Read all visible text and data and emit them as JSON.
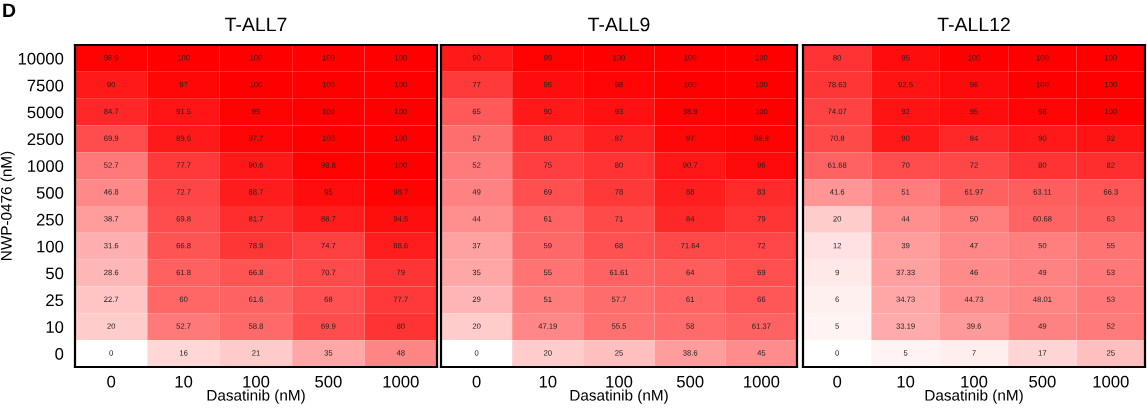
{
  "chart_data": [
    {
      "type": "heatmap",
      "title": "T-ALL7",
      "xlabel": "Dasatinib (nM)",
      "ylabel": "NWP-0476 (nM)",
      "annotations": [
        "D"
      ],
      "data_labels": true,
      "categories": [
        "0",
        "10",
        "100",
        "500",
        "1000"
      ],
      "y_categories": [
        "10000",
        "7500",
        "5000",
        "2500",
        "1000",
        "500",
        "250",
        "100",
        "50",
        "25",
        "10",
        "0"
      ],
      "cells": [
        [
          98.9,
          100,
          100,
          100,
          100
        ],
        [
          90,
          97,
          100,
          100,
          100
        ],
        [
          84.7,
          91.5,
          99,
          100,
          100
        ],
        [
          69.9,
          89.6,
          97.7,
          100,
          100
        ],
        [
          52.7,
          77.7,
          90.6,
          98.8,
          100
        ],
        [
          46.8,
          72.7,
          88.7,
          95,
          98.7
        ],
        [
          38.7,
          69.8,
          81.7,
          88.7,
          94.5
        ],
        [
          31.6,
          66.8,
          78.9,
          74.7,
          88.6
        ],
        [
          28.6,
          61.8,
          66.8,
          70.7,
          79
        ],
        [
          22.7,
          60,
          61.6,
          68,
          77.7
        ],
        [
          20,
          52.7,
          58.8,
          69.9,
          80
        ],
        [
          0,
          16,
          21,
          35,
          48
        ]
      ]
    },
    {
      "type": "heatmap",
      "title": "T-ALL9",
      "xlabel": "Dasatinib (nM)",
      "data_labels": true,
      "tick_labels": "x",
      "categories": [
        "0",
        "10",
        "100",
        "500",
        "1000"
      ],
      "y_categories": [
        "10000",
        "7500",
        "5000",
        "2500",
        "1000",
        "500",
        "250",
        "100",
        "50",
        "25",
        "10",
        "0"
      ],
      "cells": [
        [
          90,
          99,
          100,
          100,
          100
        ],
        [
          77,
          95,
          98,
          100,
          100
        ],
        [
          65,
          90,
          93,
          98.9,
          100
        ],
        [
          57,
          80,
          87,
          97,
          98.8
        ],
        [
          52,
          75,
          80,
          90.7,
          96
        ],
        [
          49,
          69,
          78,
          88,
          83
        ],
        [
          44,
          61,
          71,
          84,
          79
        ],
        [
          37,
          59,
          68,
          71.64,
          72
        ],
        [
          35,
          55,
          61.61,
          64,
          69
        ],
        [
          29,
          51,
          57.7,
          61,
          66
        ],
        [
          20,
          47.19,
          55.5,
          58,
          61.37
        ],
        [
          0,
          20,
          25,
          38.6,
          45
        ]
      ]
    },
    {
      "type": "heatmap",
      "title": "T-ALL12",
      "xlabel": "Dasatinib (nM)",
      "data_labels": true,
      "tick_labels": "x",
      "categories": [
        "0",
        "10",
        "100",
        "500",
        "1000"
      ],
      "y_categories": [
        "10000",
        "7500",
        "5000",
        "2500",
        "1000",
        "500",
        "250",
        "100",
        "50",
        "25",
        "10",
        "0"
      ],
      "cells": [
        [
          80,
          95,
          100,
          100,
          100
        ],
        [
          78.63,
          92.5,
          96,
          100,
          100
        ],
        [
          74.07,
          92,
          95,
          98,
          100
        ],
        [
          70.8,
          90,
          84,
          90,
          92
        ],
        [
          61.68,
          70,
          72,
          80,
          82
        ],
        [
          41.6,
          51,
          61.97,
          63.11,
          66.3
        ],
        [
          20,
          44,
          50,
          60.68,
          63
        ],
        [
          12,
          39,
          47,
          50,
          55
        ],
        [
          9,
          37.33,
          46,
          49,
          53
        ],
        [
          6,
          34.73,
          44.73,
          48.01,
          53
        ],
        [
          5,
          33.19,
          39.6,
          49,
          52
        ],
        [
          0,
          5,
          7,
          17,
          25
        ]
      ]
    }
  ]
}
